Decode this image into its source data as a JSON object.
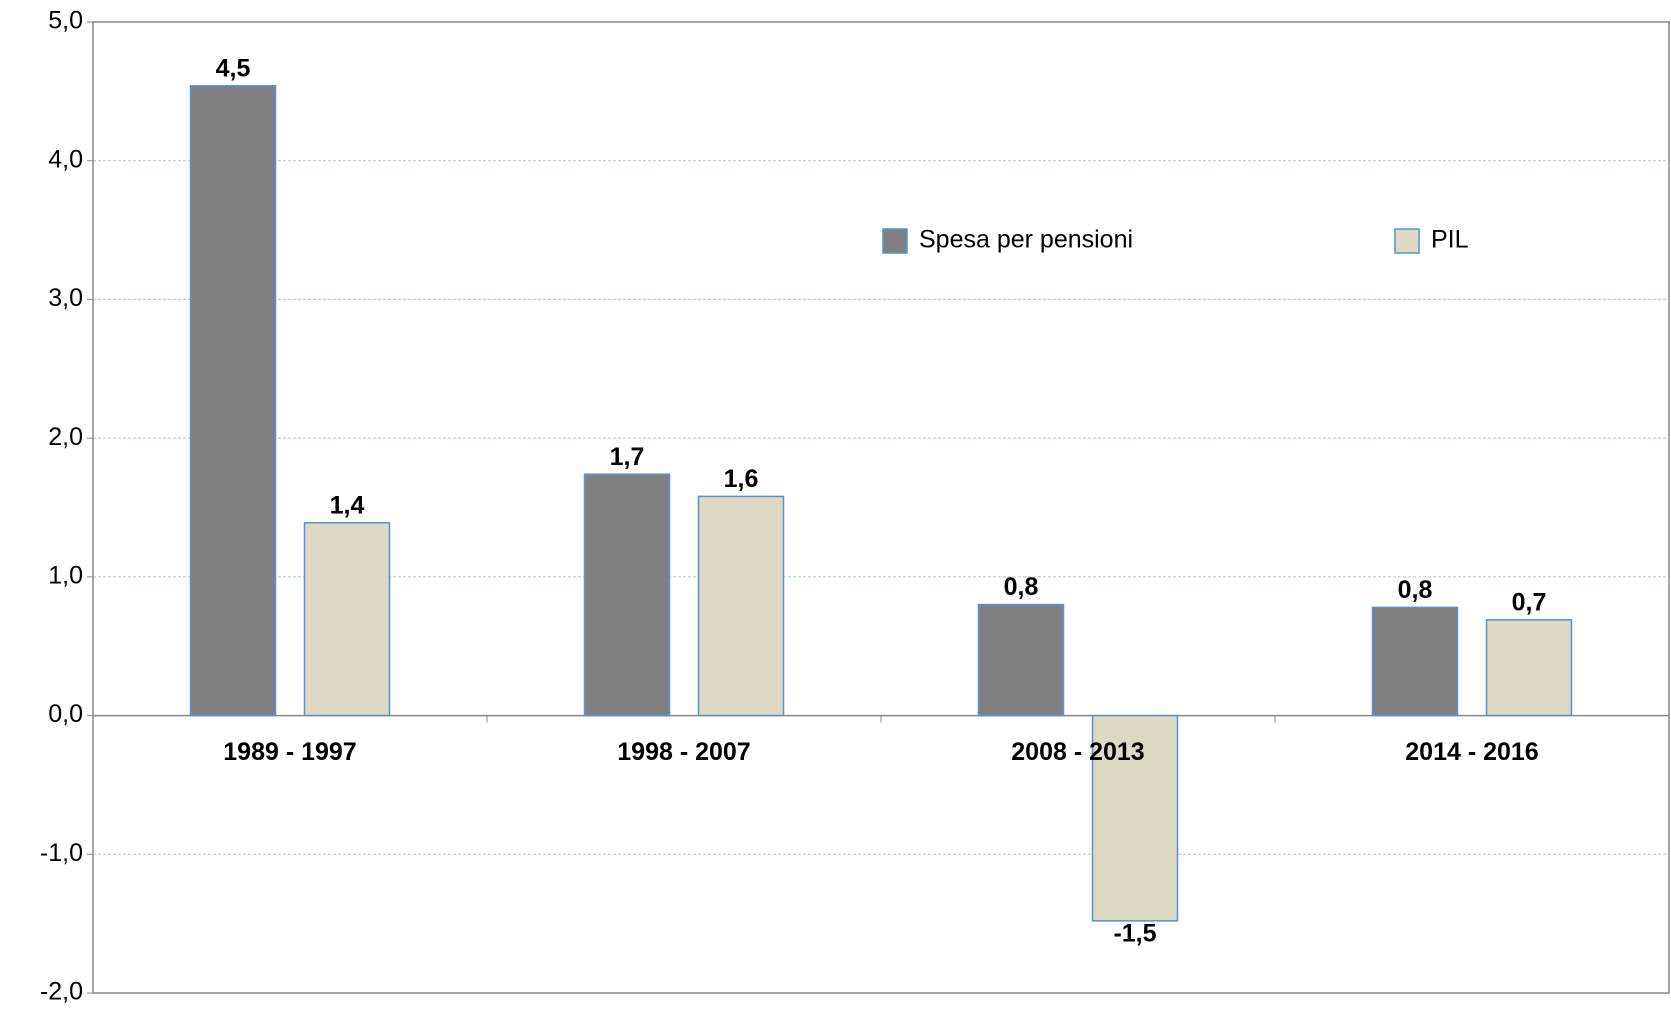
{
  "chart_data": {
    "type": "bar",
    "categories": [
      "1989 - 1997",
      "1998 - 2007",
      "2008 - 2013",
      "2014 - 2016"
    ],
    "series": [
      {
        "name": "Spesa per pensioni",
        "color": "#808080",
        "values": [
          4.54,
          1.74,
          0.8,
          0.78
        ],
        "value_labels": [
          "4,5",
          "1,7",
          "0,8",
          "0,8"
        ]
      },
      {
        "name": "PIL",
        "color": "#ddd9c3",
        "values": [
          1.39,
          1.58,
          -1.48,
          0.69
        ],
        "value_labels": [
          "1,4",
          "1,6",
          "-1,5",
          "0,7"
        ]
      }
    ],
    "ylim": [
      -2,
      5
    ],
    "yticks": [
      {
        "value": -2,
        "label": "-2,0"
      },
      {
        "value": -1,
        "label": "-1,0"
      },
      {
        "value": 0,
        "label": "0,0"
      },
      {
        "value": 1,
        "label": "1,0"
      },
      {
        "value": 2,
        "label": "2,0"
      },
      {
        "value": 3,
        "label": "3,0"
      },
      {
        "value": 4,
        "label": "4,0"
      },
      {
        "value": 5,
        "label": "5,0"
      }
    ],
    "grid": true,
    "legend": "upper right"
  }
}
